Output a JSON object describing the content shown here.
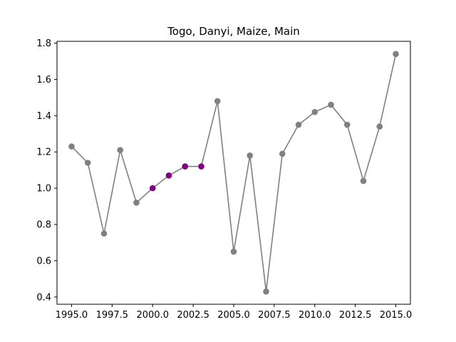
{
  "chart_data": {
    "type": "line",
    "title": "Togo, Danyi, Maize, Main",
    "xlabel": "",
    "ylabel": "",
    "xlim": [
      1994.1,
      2015.9
    ],
    "ylim": [
      0.36,
      1.81
    ],
    "x_ticks": [
      "1995.0",
      "1997.5",
      "2000.0",
      "2002.5",
      "2005.0",
      "2007.5",
      "2010.0",
      "2012.5",
      "2015.0"
    ],
    "y_ticks": [
      "0.4",
      "0.6",
      "0.8",
      "1.0",
      "1.2",
      "1.4",
      "1.6",
      "1.8"
    ],
    "grid": false,
    "line_color": "#808080",
    "series": [
      {
        "x": [
          1995,
          1996,
          1997,
          1998,
          1999,
          2000,
          2001,
          2002,
          2003,
          2004,
          2005,
          2006,
          2007,
          2008,
          2009,
          2010,
          2011,
          2012,
          2013,
          2014,
          2015
        ],
        "y": [
          1.23,
          1.14,
          0.75,
          1.21,
          0.92,
          1.0,
          1.07,
          1.12,
          1.12,
          1.48,
          0.65,
          1.18,
          0.43,
          1.19,
          1.35,
          1.42,
          1.46,
          1.35,
          1.04,
          1.34,
          1.74
        ],
        "point_colors": [
          "#808080",
          "#808080",
          "#808080",
          "#808080",
          "#808080",
          "#800080",
          "#800080",
          "#800080",
          "#800080",
          "#808080",
          "#808080",
          "#808080",
          "#808080",
          "#808080",
          "#808080",
          "#808080",
          "#808080",
          "#808080",
          "#808080",
          "#808080",
          "#808080"
        ]
      }
    ]
  }
}
